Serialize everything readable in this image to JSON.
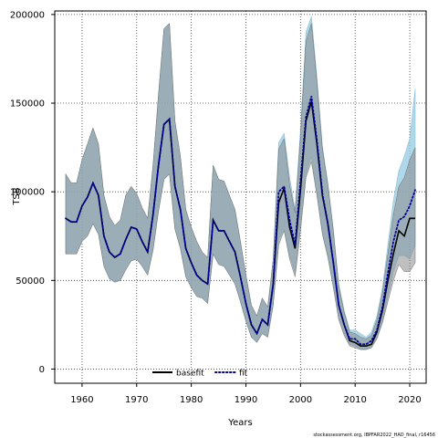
{
  "chart_data": {
    "type": "line",
    "xlabel": "Years",
    "ylabel": "TSB",
    "xlim": [
      1955,
      2023
    ],
    "ylim": [
      -8000,
      202000
    ],
    "x_ticks": [
      1960,
      1970,
      1980,
      1990,
      2000,
      2010,
      2020
    ],
    "y_ticks": [
      0,
      50000,
      100000,
      150000,
      200000
    ],
    "grid": true,
    "legend_position": "bottom-center",
    "x": [
      1957,
      1958,
      1959,
      1960,
      1961,
      1962,
      1963,
      1964,
      1965,
      1966,
      1967,
      1968,
      1969,
      1970,
      1971,
      1972,
      1973,
      1974,
      1975,
      1976,
      1977,
      1978,
      1979,
      1980,
      1981,
      1982,
      1983,
      1984,
      1985,
      1986,
      1987,
      1988,
      1989,
      1990,
      1991,
      1992,
      1993,
      1994,
      1995,
      1996,
      1997,
      1998,
      1999,
      2000,
      2001,
      2002,
      2003,
      2004,
      2005,
      2006,
      2007,
      2008,
      2009,
      2010,
      2011,
      2012,
      2013,
      2014,
      2015,
      2016,
      2017,
      2018,
      2019,
      2020,
      2021
    ],
    "series": [
      {
        "name": "basefit",
        "color": "#000000",
        "line_style": "solid",
        "band_color": "#8a8a8a",
        "values": [
          85000,
          83000,
          83000,
          92000,
          97000,
          105000,
          98000,
          75000,
          66000,
          63000,
          65000,
          73000,
          80000,
          79000,
          72000,
          66000,
          87000,
          115000,
          138000,
          141000,
          103000,
          90000,
          68000,
          60000,
          53000,
          50000,
          48000,
          84000,
          78000,
          78000,
          72000,
          66000,
          52000,
          37000,
          25000,
          20000,
          28000,
          25000,
          48000,
          94000,
          102000,
          80000,
          68000,
          101000,
          140000,
          151000,
          127000,
          98000,
          82000,
          60000,
          36000,
          25000,
          16000,
          15000,
          13000,
          13000,
          14000,
          21000,
          33000,
          50000,
          65000,
          78000,
          75000,
          85000,
          85000
        ],
        "lower": [
          65000,
          65000,
          65000,
          72000,
          75000,
          82000,
          76000,
          58000,
          51000,
          49000,
          50000,
          56000,
          61000,
          62000,
          58000,
          53000,
          67000,
          89000,
          107000,
          110000,
          79000,
          68000,
          52000,
          46000,
          41000,
          40000,
          37000,
          65000,
          59000,
          58000,
          53000,
          48000,
          38000,
          27000,
          18000,
          15000,
          20000,
          18000,
          36000,
          70000,
          78000,
          62000,
          52000,
          78000,
          108000,
          117000,
          98000,
          76000,
          63000,
          46000,
          28000,
          19000,
          13000,
          12000,
          11000,
          11000,
          12000,
          17000,
          26000,
          38000,
          50000,
          59000,
          55000,
          55000,
          60000
        ],
        "upper": [
          110000,
          105000,
          105000,
          118000,
          127000,
          136000,
          127000,
          98000,
          86000,
          81000,
          84000,
          98000,
          103000,
          99000,
          91000,
          85000,
          115000,
          155000,
          192000,
          195000,
          140000,
          120000,
          90000,
          80000,
          72000,
          66000,
          63000,
          115000,
          107000,
          106000,
          98000,
          90000,
          72000,
          53000,
          36000,
          30000,
          40000,
          35000,
          62000,
          124000,
          130000,
          104000,
          88000,
          131000,
          185000,
          195000,
          162000,
          124000,
          104000,
          78000,
          47000,
          32000,
          21000,
          20000,
          18000,
          17000,
          19000,
          28000,
          43000,
          65000,
          87000,
          103000,
          108000,
          118000,
          125000
        ]
      },
      {
        "name": "fit",
        "color": "#00009a",
        "line_style": "dotted",
        "band_color": "#94cbe3",
        "values": [
          85000,
          83000,
          83000,
          92000,
          97000,
          105000,
          98000,
          75000,
          66000,
          63000,
          65000,
          73000,
          80000,
          79000,
          72000,
          66000,
          87000,
          115000,
          138000,
          141000,
          103000,
          90000,
          68000,
          60000,
          53000,
          50000,
          48000,
          84000,
          78000,
          78000,
          72000,
          66000,
          52000,
          37000,
          25000,
          20000,
          28000,
          25000,
          48000,
          100000,
          103000,
          84000,
          70000,
          106000,
          142000,
          154000,
          129000,
          99000,
          82000,
          60000,
          36000,
          25000,
          17000,
          17000,
          14000,
          14000,
          16000,
          22000,
          35000,
          54000,
          72000,
          84000,
          86000,
          92000,
          101000
        ],
        "lower": [
          65000,
          65000,
          65000,
          72000,
          75000,
          82000,
          76000,
          58000,
          51000,
          49000,
          50000,
          56000,
          61000,
          62000,
          58000,
          53000,
          67000,
          89000,
          107000,
          110000,
          79000,
          68000,
          52000,
          46000,
          41000,
          40000,
          37000,
          65000,
          59000,
          58000,
          53000,
          48000,
          38000,
          27000,
          18000,
          15000,
          20000,
          18000,
          36000,
          73000,
          79000,
          64000,
          54000,
          82000,
          110000,
          120000,
          99000,
          77000,
          64000,
          47000,
          28000,
          19000,
          14000,
          13000,
          11000,
          11000,
          12000,
          18000,
          27000,
          41000,
          55000,
          64000,
          64000,
          62000,
          70000
        ],
        "upper": [
          110000,
          105000,
          105000,
          118000,
          127000,
          136000,
          127000,
          98000,
          86000,
          81000,
          84000,
          98000,
          103000,
          99000,
          91000,
          85000,
          115000,
          155000,
          192000,
          195000,
          140000,
          120000,
          90000,
          80000,
          72000,
          66000,
          63000,
          115000,
          107000,
          106000,
          98000,
          90000,
          72000,
          53000,
          36000,
          30000,
          40000,
          35000,
          62000,
          128000,
          133000,
          108000,
          90000,
          135000,
          190000,
          199000,
          165000,
          126000,
          105000,
          79000,
          48000,
          33000,
          22000,
          22000,
          20000,
          18000,
          21000,
          30000,
          46000,
          70000,
          95000,
          112000,
          120000,
          130000,
          158000
        ]
      }
    ],
    "footnote": "stockassessment.org, IBPFAR2022_HAD_final, r16456"
  },
  "colors": {
    "grid": "#404040",
    "frame": "#000000"
  }
}
